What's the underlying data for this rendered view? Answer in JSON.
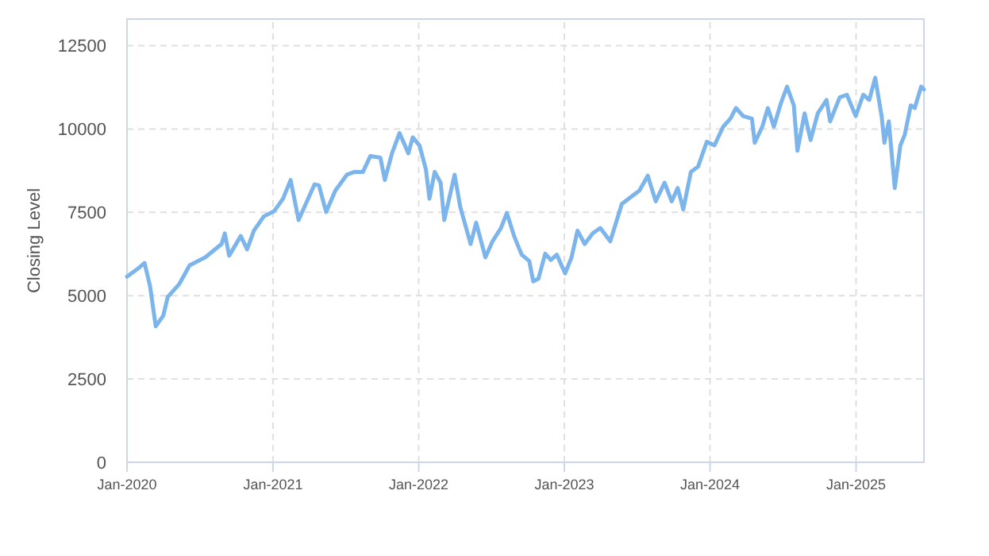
{
  "chart_data": {
    "type": "line",
    "ylabel": "Closing Level",
    "grid": true,
    "marker": "none",
    "line_style": "solid",
    "xlim": [
      "2020-01-01",
      "2025-06-20"
    ],
    "ylim": [
      0,
      13300
    ],
    "xticks": [
      {
        "value": "2020-01-01",
        "label": "Jan-2020"
      },
      {
        "value": "2021-01-01",
        "label": "Jan-2021"
      },
      {
        "value": "2022-01-01",
        "label": "Jan-2022"
      },
      {
        "value": "2023-01-01",
        "label": "Jan-2023"
      },
      {
        "value": "2024-01-01",
        "label": "Jan-2024"
      },
      {
        "value": "2025-01-01",
        "label": "Jan-2025"
      }
    ],
    "yticks": [
      0,
      2500,
      5000,
      7500,
      10000,
      12500
    ],
    "x": [
      "2020-01-01",
      "2020-01-26",
      "2020-02-14",
      "2020-02-28",
      "2020-03-13",
      "2020-04-01",
      "2020-04-12",
      "2020-05-11",
      "2020-06-06",
      "2020-07-15",
      "2020-08-25",
      "2020-09-02",
      "2020-09-13",
      "2020-10-12",
      "2020-10-28",
      "2020-11-14",
      "2020-12-09",
      "2021-01-04",
      "2021-01-26",
      "2021-02-14",
      "2021-03-06",
      "2021-03-24",
      "2021-04-15",
      "2021-04-26",
      "2021-05-14",
      "2021-06-06",
      "2021-07-05",
      "2021-07-23",
      "2021-08-14",
      "2021-09-02",
      "2021-09-27",
      "2021-10-08",
      "2021-10-26",
      "2021-11-14",
      "2021-12-06",
      "2021-12-17",
      "2022-01-03",
      "2022-01-19",
      "2022-01-28",
      "2022-02-10",
      "2022-02-25",
      "2022-03-06",
      "2022-04-01",
      "2022-04-15",
      "2022-05-11",
      "2022-05-25",
      "2022-06-17",
      "2022-07-05",
      "2022-07-26",
      "2022-08-10",
      "2022-08-28",
      "2022-09-16",
      "2022-10-05",
      "2022-10-15",
      "2022-10-28",
      "2022-11-14",
      "2022-11-28",
      "2022-12-13",
      "2023-01-03",
      "2023-01-19",
      "2023-02-03",
      "2023-02-21",
      "2023-03-13",
      "2023-04-01",
      "2023-04-26",
      "2023-05-25",
      "2023-06-20",
      "2023-07-08",
      "2023-07-29",
      "2023-08-18",
      "2023-09-09",
      "2023-09-27",
      "2023-10-12",
      "2023-10-26",
      "2023-11-14",
      "2023-12-02",
      "2023-12-24",
      "2024-01-12",
      "2024-02-03",
      "2024-02-21",
      "2024-03-06",
      "2024-03-24",
      "2024-04-15",
      "2024-04-22",
      "2024-05-11",
      "2024-05-25",
      "2024-06-09",
      "2024-06-27",
      "2024-07-12",
      "2024-07-29",
      "2024-08-07",
      "2024-08-25",
      "2024-09-09",
      "2024-09-27",
      "2024-10-19",
      "2024-10-28",
      "2024-11-21",
      "2024-12-09",
      "2024-12-31",
      "2025-01-19",
      "2025-02-03",
      "2025-02-18",
      "2025-03-06",
      "2025-03-13",
      "2025-03-24",
      "2025-04-08",
      "2025-04-22",
      "2025-05-03",
      "2025-05-18",
      "2025-05-28",
      "2025-06-13",
      "2025-06-20"
    ],
    "series": [
      {
        "color": "#7cb5ec",
        "values": [
          5570,
          5790,
          5980,
          5270,
          4080,
          4400,
          4960,
          5350,
          5910,
          6150,
          6550,
          6870,
          6200,
          6790,
          6390,
          6950,
          7380,
          7540,
          7910,
          8470,
          7270,
          7750,
          8340,
          8310,
          7510,
          8150,
          8630,
          8710,
          8710,
          9190,
          9140,
          8470,
          9270,
          9880,
          9270,
          9750,
          9510,
          8790,
          7910,
          8710,
          8390,
          7270,
          8630,
          7670,
          6550,
          7190,
          6150,
          6630,
          7030,
          7480,
          6790,
          6230,
          6040,
          5430,
          5510,
          6260,
          6070,
          6230,
          5670,
          6150,
          6950,
          6550,
          6870,
          7030,
          6630,
          7750,
          7990,
          8150,
          8600,
          7830,
          8390,
          7830,
          8230,
          7590,
          8710,
          8870,
          9620,
          9510,
          10070,
          10310,
          10630,
          10390,
          10310,
          9590,
          10070,
          10630,
          10070,
          10790,
          11270,
          10710,
          9350,
          10470,
          9670,
          10470,
          10870,
          10230,
          10950,
          11030,
          10390,
          11030,
          10870,
          11540,
          10390,
          9590,
          10230,
          8230,
          9510,
          9830,
          10710,
          10630,
          11270,
          11190
        ]
      }
    ]
  }
}
